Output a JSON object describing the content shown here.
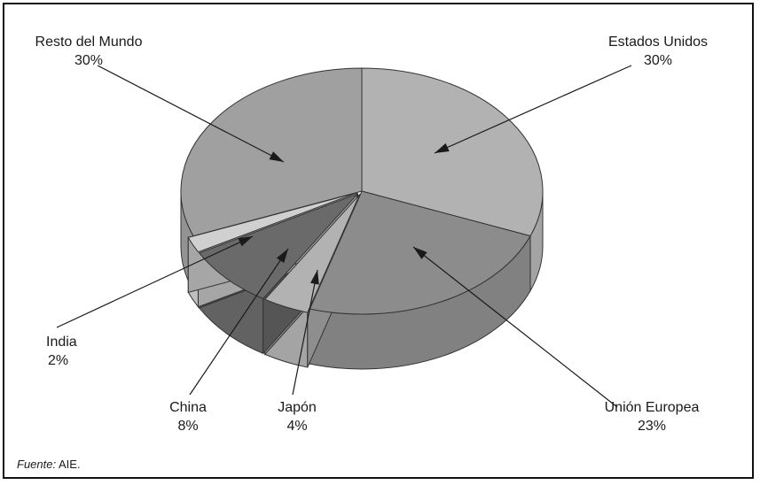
{
  "chart_data": {
    "type": "pie",
    "style": "3d-exploded-pie",
    "slices": [
      {
        "label": "Estados Unidos",
        "value": 30,
        "value_label": "30%",
        "color": "#b2b2b2"
      },
      {
        "label": "Unión Europea",
        "value": 23,
        "value_label": "23%",
        "color": "#8c8c8c"
      },
      {
        "label": "Japón",
        "value": 4,
        "value_label": "4%",
        "color": "#b2b2b2"
      },
      {
        "label": "China",
        "value": 8,
        "value_label": "8%",
        "color": "#6a6a6a"
      },
      {
        "label": "India",
        "value": 2,
        "value_label": "2%",
        "color": "#d0d0d0"
      },
      {
        "label": "Resto del Mundo",
        "value": 30,
        "value_label": "30%",
        "color": "#a0a0a0"
      }
    ],
    "legend": "none"
  },
  "source": {
    "prefix": "Fuente:",
    "text": " AIE."
  }
}
